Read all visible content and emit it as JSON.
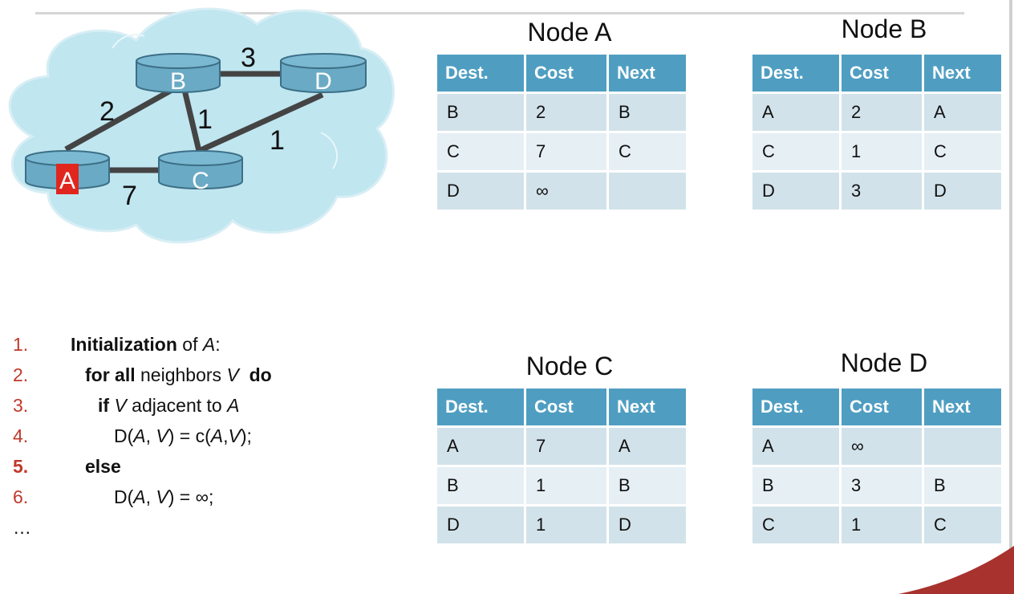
{
  "network": {
    "nodes": [
      {
        "id": "B",
        "label": "B"
      },
      {
        "id": "D",
        "label": "D"
      },
      {
        "id": "A",
        "label": "A",
        "highlight_color": "#e0261f"
      },
      {
        "id": "C",
        "label": "C"
      }
    ],
    "edges": [
      {
        "from": "B",
        "to": "D",
        "cost": "3"
      },
      {
        "from": "A",
        "to": "B",
        "cost": "2"
      },
      {
        "from": "B",
        "to": "C",
        "cost": "1"
      },
      {
        "from": "C",
        "to": "D",
        "cost": "1"
      },
      {
        "from": "A",
        "to": "C",
        "cost": "7"
      }
    ],
    "colors": {
      "cloud": "#c0e6f0",
      "router": "#6aaac5",
      "router_top": "#7bb9d2",
      "link": "#444444"
    }
  },
  "tables": [
    {
      "title": "Node A",
      "headers": [
        "Dest.",
        "Cost",
        "Next"
      ],
      "rows": [
        [
          "B",
          "2",
          "B"
        ],
        [
          "C",
          "7",
          "C"
        ],
        [
          "D",
          "∞",
          ""
        ]
      ]
    },
    {
      "title": "Node B",
      "headers": [
        "Dest.",
        "Cost",
        "Next"
      ],
      "rows": [
        [
          "A",
          "2",
          "A"
        ],
        [
          "C",
          "1",
          "C"
        ],
        [
          "D",
          "3",
          "D"
        ]
      ]
    },
    {
      "title": "Node C",
      "headers": [
        "Dest.",
        "Cost",
        "Next"
      ],
      "rows": [
        [
          "A",
          "7",
          "A"
        ],
        [
          "B",
          "1",
          "B"
        ],
        [
          "D",
          "1",
          "D"
        ]
      ]
    },
    {
      "title": "Node D",
      "headers": [
        "Dest.",
        "Cost",
        "Next"
      ],
      "rows": [
        [
          "A",
          "∞",
          ""
        ],
        [
          "B",
          "3",
          "B"
        ],
        [
          "C",
          "1",
          "C"
        ]
      ]
    }
  ],
  "algorithm": {
    "lines": [
      {
        "num": "1.",
        "parts": [
          {
            "t": "Initialization",
            "s": "b"
          },
          {
            "t": " of ",
            "s": ""
          },
          {
            "t": "A",
            "s": "i"
          },
          {
            "t": ":",
            "s": ""
          }
        ]
      },
      {
        "num": "2.",
        "parts": [
          {
            "t": "for all",
            "s": "b"
          },
          {
            "t": " neighbors ",
            "s": ""
          },
          {
            "t": "V",
            "s": "i"
          },
          {
            "t": "  ",
            "s": ""
          },
          {
            "t": "do",
            "s": "b"
          }
        ]
      },
      {
        "num": "3.",
        "parts": [
          {
            "t": "if",
            "s": "b"
          },
          {
            "t": " ",
            "s": ""
          },
          {
            "t": "V",
            "s": "i"
          },
          {
            "t": " adjacent to ",
            "s": ""
          },
          {
            "t": "A",
            "s": "i"
          }
        ]
      },
      {
        "num": "4.",
        "parts": [
          {
            "t": "D(",
            "s": ""
          },
          {
            "t": "A",
            "s": "i"
          },
          {
            "t": ", ",
            "s": ""
          },
          {
            "t": "V",
            "s": "i"
          },
          {
            "t": ") = c(",
            "s": ""
          },
          {
            "t": "A",
            "s": "i"
          },
          {
            "t": ",",
            "s": ""
          },
          {
            "t": "V",
            "s": "i"
          },
          {
            "t": ");",
            "s": ""
          }
        ]
      },
      {
        "num": "5.",
        "parts": [
          {
            "t": "else",
            "s": "b"
          }
        ]
      },
      {
        "num": "6.",
        "parts": [
          {
            "t": "D(",
            "s": ""
          },
          {
            "t": "A",
            "s": "i"
          },
          {
            "t": ", ",
            "s": ""
          },
          {
            "t": "V",
            "s": "i"
          },
          {
            "t": ") = ∞;",
            "s": ""
          }
        ]
      },
      {
        "num": "…",
        "parts": []
      }
    ],
    "number_color": "#c0392b"
  }
}
